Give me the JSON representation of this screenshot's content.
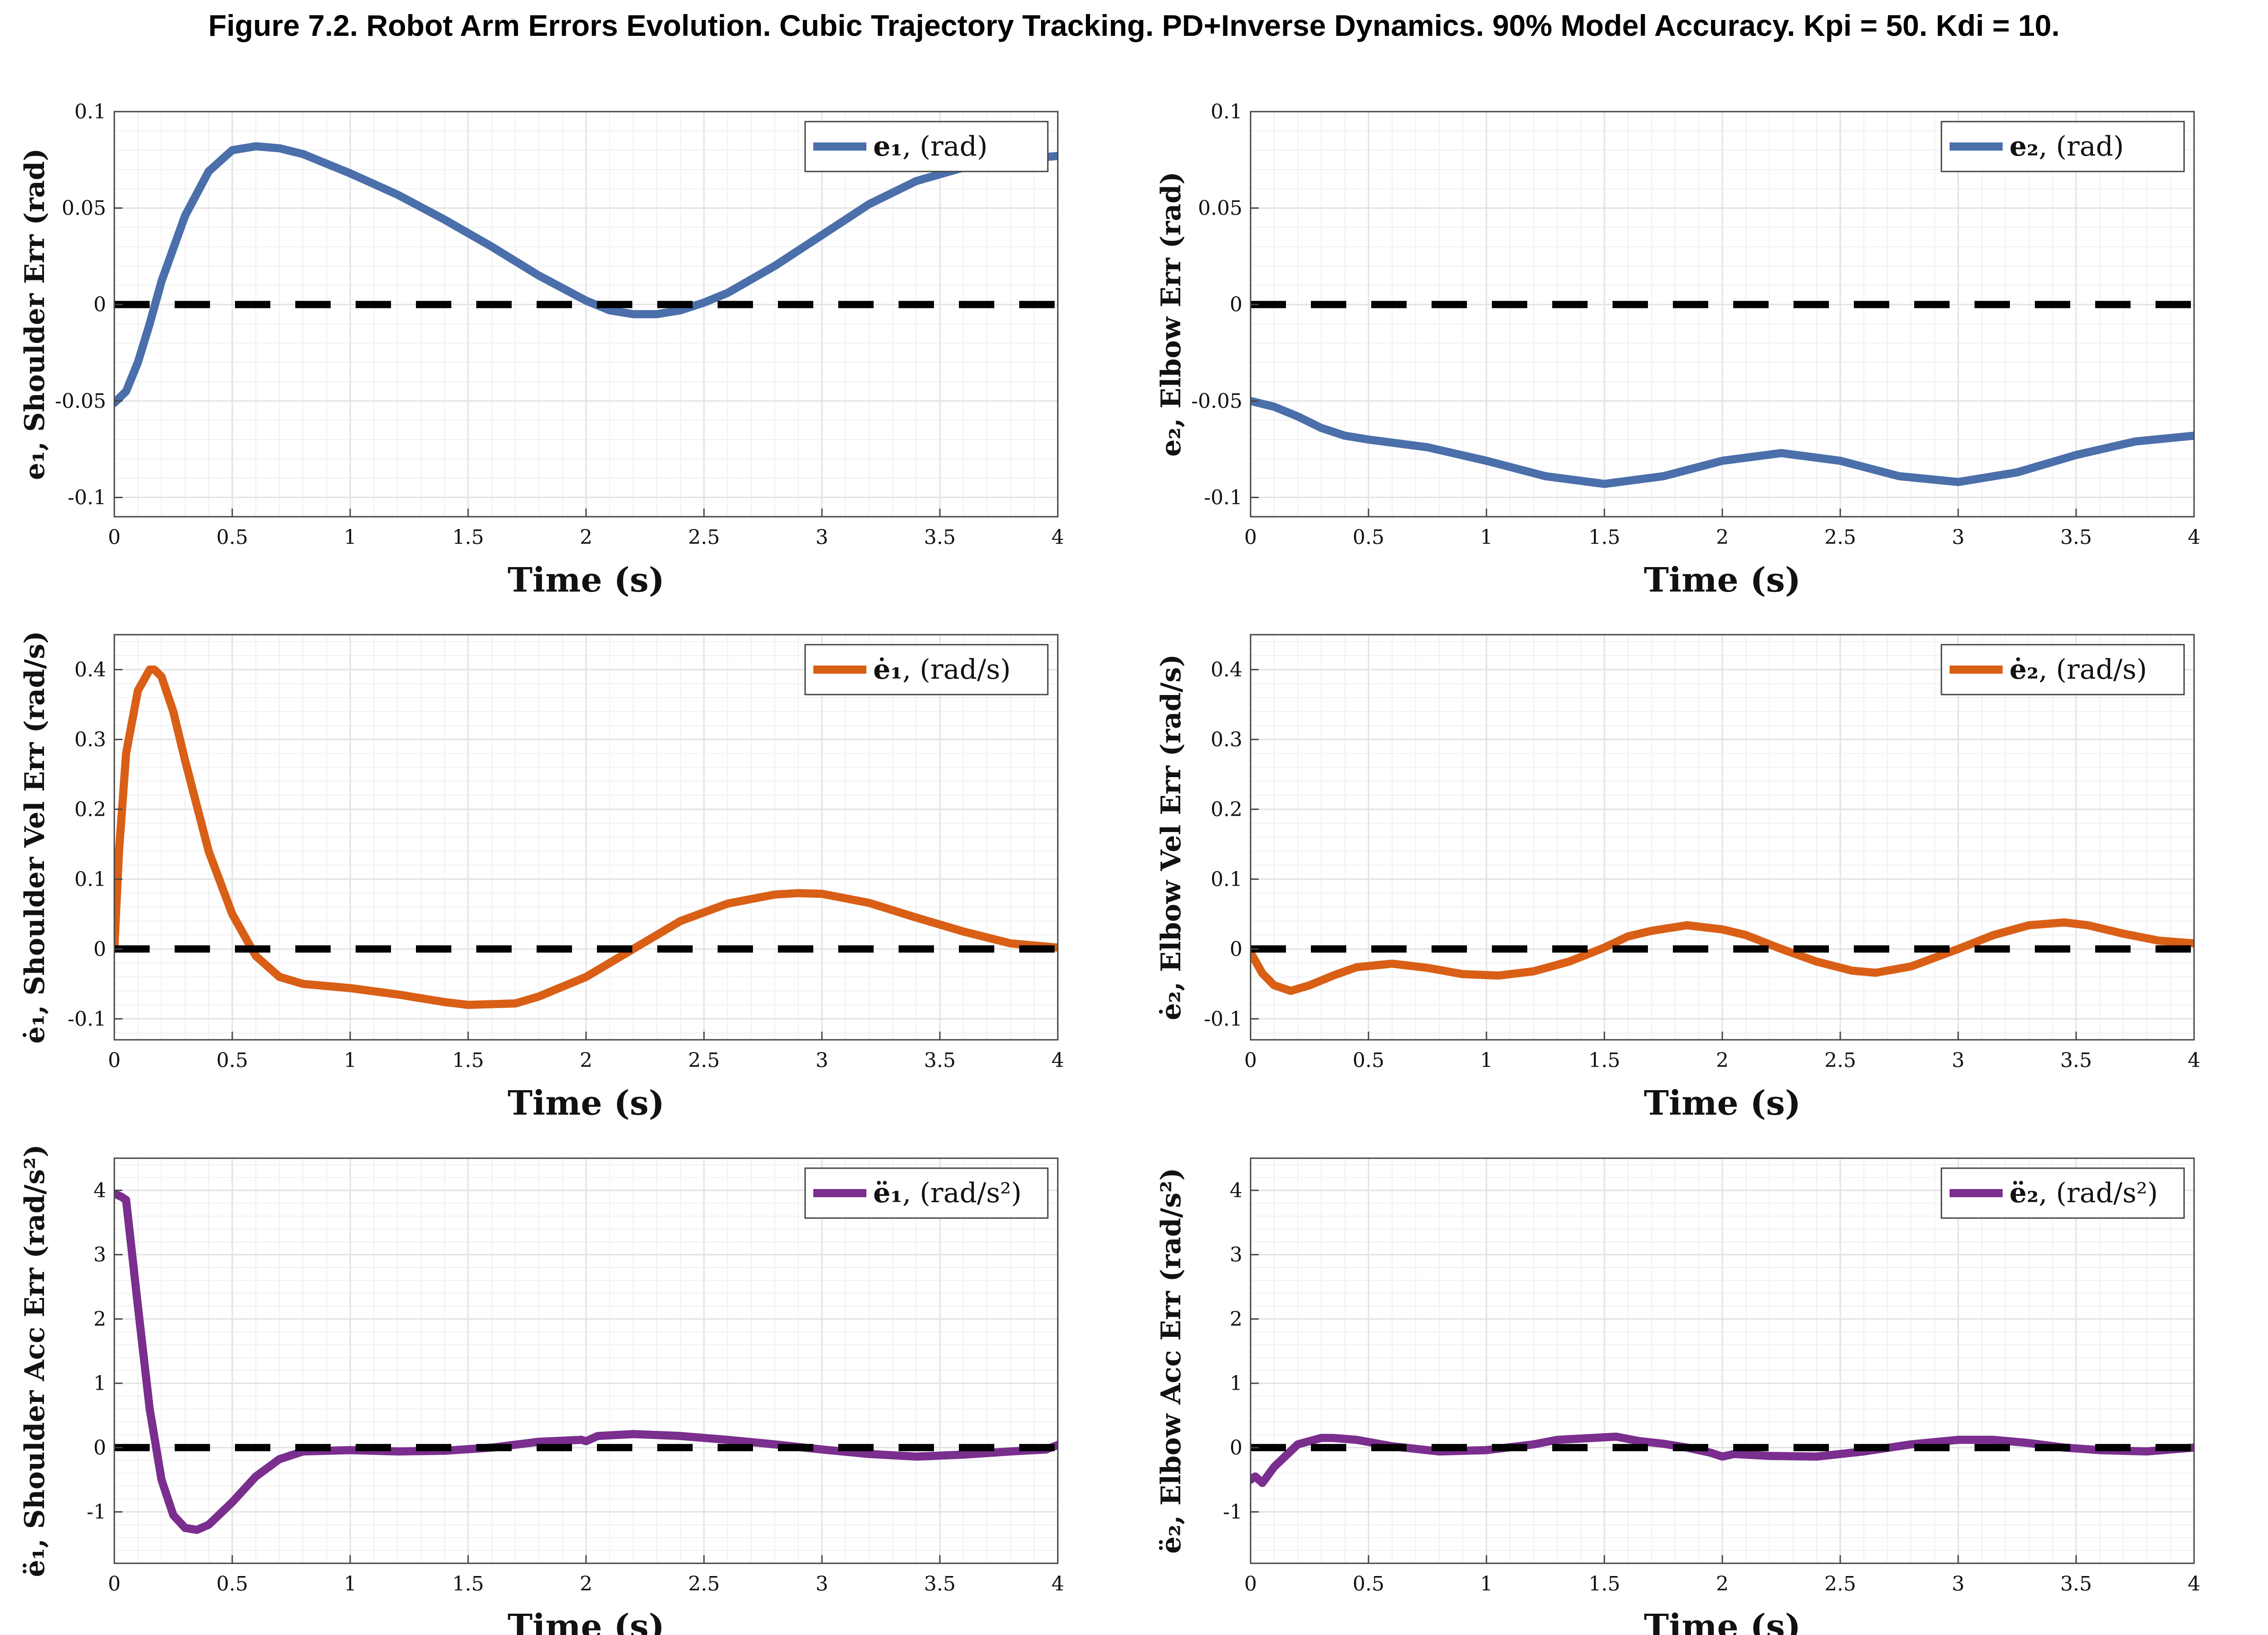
{
  "figure_title": "Figure 7.2. Robot Arm Errors Evolution. Cubic Trajectory Tracking. PD+Inverse Dynamics. 90% Model Accuracy. Kpi = 50. Kdi = 10.",
  "colors": {
    "blue": "#4a6faa",
    "orange": "#d95f16",
    "purple": "#7a2e8e",
    "reference": "#000000",
    "grid": "#e2e2e2",
    "axes": "#444444"
  },
  "chart_data": [
    {
      "type": "line",
      "panel": "shoulder-position",
      "xlabel": "Time (s)",
      "ylabel": "e₁, Shoulder Err (rad)",
      "legend": {
        "symbol": "e₁",
        "unit": ", (rad)"
      },
      "xlim": [
        0,
        4
      ],
      "ylim": [
        -0.11,
        0.1
      ],
      "xticks": [
        0,
        0.5,
        1,
        1.5,
        2,
        2.5,
        3,
        3.5,
        4
      ],
      "xtick_labels": [
        "0",
        "0.5",
        "1",
        "1.5",
        "2",
        "2.5",
        "3",
        "3.5",
        "4"
      ],
      "yticks": [
        -0.1,
        -0.05,
        0,
        0.05,
        0.1
      ],
      "ytick_labels": [
        "-0.1",
        "-0.05",
        "0",
        "0.05",
        "0.1"
      ],
      "grid": "on, with minor grid",
      "legend_position": "top-right",
      "series": [
        {
          "color": "blue",
          "reference": false,
          "x": [
            0,
            0.05,
            0.1,
            0.15,
            0.2,
            0.3,
            0.4,
            0.5,
            0.6,
            0.7,
            0.8,
            1.0,
            1.2,
            1.4,
            1.6,
            1.8,
            2.0,
            2.1,
            2.2,
            2.3,
            2.4,
            2.5,
            2.6,
            2.8,
            3.0,
            3.2,
            3.4,
            3.6,
            3.8,
            4.0
          ],
          "y": [
            -0.051,
            -0.045,
            -0.03,
            -0.01,
            0.012,
            0.046,
            0.069,
            0.08,
            0.082,
            0.081,
            0.078,
            0.068,
            0.057,
            0.044,
            0.03,
            0.015,
            0.002,
            -0.003,
            -0.005,
            -0.005,
            -0.003,
            0.001,
            0.006,
            0.02,
            0.036,
            0.052,
            0.064,
            0.071,
            0.075,
            0.077
          ]
        },
        {
          "color": "reference",
          "reference": true,
          "x": [
            0,
            4
          ],
          "y": [
            0,
            0
          ]
        }
      ]
    },
    {
      "type": "line",
      "panel": "elbow-position",
      "xlabel": "Time (s)",
      "ylabel": "e₂, Elbow Err (rad)",
      "legend": {
        "symbol": "e₂",
        "unit": ", (rad)"
      },
      "xlim": [
        0,
        4
      ],
      "ylim": [
        -0.11,
        0.1
      ],
      "xticks": [
        0,
        0.5,
        1,
        1.5,
        2,
        2.5,
        3,
        3.5,
        4
      ],
      "xtick_labels": [
        "0",
        "0.5",
        "1",
        "1.5",
        "2",
        "2.5",
        "3",
        "3.5",
        "4"
      ],
      "yticks": [
        -0.1,
        -0.05,
        0,
        0.05,
        0.1
      ],
      "ytick_labels": [
        "-0.1",
        "-0.05",
        "0",
        "0.05",
        "0.1"
      ],
      "grid": "on, with minor grid",
      "legend_position": "top-right",
      "series": [
        {
          "color": "blue",
          "reference": false,
          "x": [
            0,
            0.1,
            0.2,
            0.3,
            0.4,
            0.5,
            0.75,
            1.0,
            1.25,
            1.5,
            1.75,
            2.0,
            2.25,
            2.5,
            2.75,
            3.0,
            3.25,
            3.5,
            3.75,
            4.0
          ],
          "y": [
            -0.05,
            -0.053,
            -0.058,
            -0.064,
            -0.068,
            -0.07,
            -0.074,
            -0.081,
            -0.089,
            -0.093,
            -0.089,
            -0.081,
            -0.077,
            -0.081,
            -0.089,
            -0.092,
            -0.087,
            -0.078,
            -0.071,
            -0.068
          ]
        },
        {
          "color": "reference",
          "reference": true,
          "x": [
            0,
            4
          ],
          "y": [
            0,
            0
          ]
        }
      ]
    },
    {
      "type": "line",
      "panel": "shoulder-velocity",
      "xlabel": "Time (s)",
      "ylabel": "ė₁, Shoulder Vel Err (rad/s)",
      "legend": {
        "symbol": "ė₁",
        "unit": ", (rad/s)"
      },
      "xlim": [
        0,
        4
      ],
      "ylim": [
        -0.13,
        0.45
      ],
      "xticks": [
        0,
        0.5,
        1,
        1.5,
        2,
        2.5,
        3,
        3.5,
        4
      ],
      "xtick_labels": [
        "0",
        "0.5",
        "1",
        "1.5",
        "2",
        "2.5",
        "3",
        "3.5",
        "4"
      ],
      "yticks": [
        -0.1,
        0,
        0.1,
        0.2,
        0.3,
        0.4
      ],
      "ytick_labels": [
        "-0.1",
        "0",
        "0.1",
        "0.2",
        "0.3",
        "0.4"
      ],
      "grid": "on, with minor grid",
      "legend_position": "top-right",
      "series": [
        {
          "color": "orange",
          "reference": false,
          "x": [
            0,
            0.02,
            0.05,
            0.1,
            0.15,
            0.17,
            0.2,
            0.25,
            0.3,
            0.4,
            0.5,
            0.6,
            0.7,
            0.8,
            1.0,
            1.2,
            1.4,
            1.5,
            1.7,
            1.8,
            2.0,
            2.2,
            2.4,
            2.6,
            2.8,
            2.9,
            3.0,
            3.2,
            3.4,
            3.6,
            3.8,
            4.0
          ],
          "y": [
            0,
            0.14,
            0.28,
            0.37,
            0.4,
            0.4,
            0.39,
            0.34,
            0.27,
            0.14,
            0.05,
            -0.01,
            -0.04,
            -0.05,
            -0.056,
            -0.065,
            -0.076,
            -0.08,
            -0.078,
            -0.068,
            -0.04,
            0.0,
            0.04,
            0.065,
            0.078,
            0.08,
            0.079,
            0.066,
            0.045,
            0.025,
            0.008,
            0.002
          ]
        },
        {
          "color": "reference",
          "reference": true,
          "x": [
            0,
            4
          ],
          "y": [
            0,
            0
          ]
        }
      ]
    },
    {
      "type": "line",
      "panel": "elbow-velocity",
      "xlabel": "Time (s)",
      "ylabel": "ė₂, Elbow Vel Err (rad/s)",
      "legend": {
        "symbol": "ė₂",
        "unit": ", (rad/s)"
      },
      "xlim": [
        0,
        4
      ],
      "ylim": [
        -0.13,
        0.45
      ],
      "xticks": [
        0,
        0.5,
        1,
        1.5,
        2,
        2.5,
        3,
        3.5,
        4
      ],
      "xtick_labels": [
        "0",
        "0.5",
        "1",
        "1.5",
        "2",
        "2.5",
        "3",
        "3.5",
        "4"
      ],
      "yticks": [
        -0.1,
        0,
        0.1,
        0.2,
        0.3,
        0.4
      ],
      "ytick_labels": [
        "-0.1",
        "0",
        "0.1",
        "0.2",
        "0.3",
        "0.4"
      ],
      "grid": "on, with minor grid",
      "legend_position": "top-right",
      "series": [
        {
          "color": "orange",
          "reference": false,
          "x": [
            0,
            0.05,
            0.1,
            0.17,
            0.25,
            0.35,
            0.45,
            0.6,
            0.75,
            0.9,
            1.05,
            1.2,
            1.35,
            1.5,
            1.6,
            1.7,
            1.85,
            2.0,
            2.1,
            2.25,
            2.4,
            2.55,
            2.65,
            2.8,
            3.0,
            3.15,
            3.3,
            3.45,
            3.55,
            3.7,
            3.85,
            4.0
          ],
          "y": [
            -0.005,
            -0.035,
            -0.052,
            -0.06,
            -0.052,
            -0.038,
            -0.026,
            -0.021,
            -0.027,
            -0.036,
            -0.038,
            -0.032,
            -0.018,
            0.002,
            0.018,
            0.026,
            0.034,
            0.028,
            0.02,
            0.0,
            -0.018,
            -0.031,
            -0.034,
            -0.025,
            0.0,
            0.02,
            0.034,
            0.038,
            0.034,
            0.022,
            0.012,
            0.008
          ]
        },
        {
          "color": "reference",
          "reference": true,
          "x": [
            0,
            4
          ],
          "y": [
            0,
            0
          ]
        }
      ]
    },
    {
      "type": "line",
      "panel": "shoulder-acceleration",
      "xlabel": "Time (s)",
      "ylabel": "ë₁, Shoulder Acc Err (rad/s²)",
      "legend": {
        "symbol": "ë₁",
        "unit": ", (rad/s²)"
      },
      "xlim": [
        0,
        4
      ],
      "ylim": [
        -1.8,
        4.5
      ],
      "xticks": [
        0,
        0.5,
        1,
        1.5,
        2,
        2.5,
        3,
        3.5,
        4
      ],
      "xtick_labels": [
        "0",
        "0.5",
        "1",
        "1.5",
        "2",
        "2.5",
        "3",
        "3.5",
        "4"
      ],
      "yticks": [
        -1,
        0,
        1,
        2,
        3,
        4
      ],
      "ytick_labels": [
        "-1",
        "0",
        "1",
        "2",
        "3",
        "4"
      ],
      "grid": "on, with minor grid",
      "legend_position": "top-right",
      "series": [
        {
          "color": "purple",
          "reference": false,
          "x": [
            0,
            0.03,
            0.05,
            0.1,
            0.15,
            0.2,
            0.25,
            0.3,
            0.35,
            0.4,
            0.5,
            0.6,
            0.7,
            0.8,
            1.0,
            1.2,
            1.4,
            1.6,
            1.8,
            1.98,
            2.0,
            2.05,
            2.2,
            2.4,
            2.6,
            2.8,
            3.0,
            3.2,
            3.4,
            3.6,
            3.8,
            3.95,
            4.0
          ],
          "y": [
            3.95,
            3.9,
            3.85,
            2.2,
            0.6,
            -0.5,
            -1.05,
            -1.25,
            -1.28,
            -1.2,
            -0.85,
            -0.45,
            -0.18,
            -0.06,
            -0.04,
            -0.06,
            -0.05,
            0.0,
            0.09,
            0.12,
            0.1,
            0.18,
            0.21,
            0.18,
            0.12,
            0.05,
            -0.03,
            -0.1,
            -0.14,
            -0.11,
            -0.06,
            -0.03,
            0.04
          ]
        },
        {
          "color": "reference",
          "reference": true,
          "x": [
            0,
            4
          ],
          "y": [
            0,
            0
          ]
        }
      ]
    },
    {
      "type": "line",
      "panel": "elbow-acceleration",
      "xlabel": "Time (s)",
      "ylabel": "ë₂, Elbow Acc Err (rad/s²)",
      "legend": {
        "symbol": "ë₂",
        "unit": ", (rad/s²)"
      },
      "xlim": [
        0,
        4
      ],
      "ylim": [
        -1.8,
        4.5
      ],
      "xticks": [
        0,
        0.5,
        1,
        1.5,
        2,
        2.5,
        3,
        3.5,
        4
      ],
      "xtick_labels": [
        "0",
        "0.5",
        "1",
        "1.5",
        "2",
        "2.5",
        "3",
        "3.5",
        "4"
      ],
      "yticks": [
        -1,
        0,
        1,
        2,
        3,
        4
      ],
      "ytick_labels": [
        "-1",
        "0",
        "1",
        "2",
        "3",
        "4"
      ],
      "grid": "on, with minor grid",
      "legend_position": "top-right",
      "series": [
        {
          "color": "purple",
          "reference": false,
          "x": [
            0,
            0.02,
            0.05,
            0.1,
            0.2,
            0.3,
            0.35,
            0.45,
            0.6,
            0.8,
            1.0,
            1.2,
            1.3,
            1.45,
            1.55,
            1.65,
            1.75,
            1.85,
            1.95,
            2.0,
            2.05,
            2.2,
            2.4,
            2.6,
            2.8,
            3.0,
            3.15,
            3.3,
            3.45,
            3.6,
            3.8,
            4.0
          ],
          "y": [
            -0.5,
            -0.45,
            -0.55,
            -0.3,
            0.05,
            0.15,
            0.15,
            0.12,
            0.02,
            -0.06,
            -0.04,
            0.05,
            0.12,
            0.15,
            0.17,
            0.1,
            0.06,
            0.0,
            -0.08,
            -0.14,
            -0.1,
            -0.13,
            -0.14,
            -0.06,
            0.05,
            0.12,
            0.12,
            0.07,
            0.0,
            -0.04,
            -0.06,
            0.0
          ]
        },
        {
          "color": "reference",
          "reference": true,
          "x": [
            0,
            4
          ],
          "y": [
            0,
            0
          ]
        }
      ]
    }
  ]
}
